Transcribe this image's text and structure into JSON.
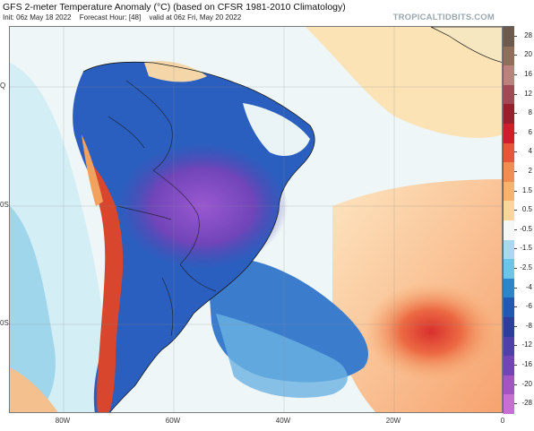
{
  "header": {
    "title": "GFS 2-meter Temperature Anomaly (°C) (based on CFSR 1981-2010 Climatology)",
    "init": "Init: 06z May 18 2022",
    "forecast_hour": "Forecast Hour: [48]",
    "valid": "valid at 06z Fri, May 20 2022",
    "brand": "TROPICALTIDBITS.COM"
  },
  "map": {
    "region": "South America",
    "lat_labels": [
      "Q",
      "0S",
      "0S"
    ],
    "lon_labels": [
      "80W",
      "60W",
      "40W",
      "20W",
      "0"
    ]
  },
  "colorbar": {
    "labels": [
      "28",
      "20",
      "16",
      "12",
      "8",
      "6",
      "4",
      "2",
      "1.5",
      "0.5",
      "-0.5",
      "-1.5",
      "-2.5",
      "-4",
      "-6",
      "-8",
      "-12",
      "-16",
      "-20",
      "-28"
    ],
    "colors": [
      "#6b5a4d",
      "#8f6f59",
      "#b9827a",
      "#a14a55",
      "#9a1f2d",
      "#cf1f2a",
      "#e8563a",
      "#f18c52",
      "#f7b36d",
      "#fbd59a",
      "#f5f7f7",
      "#a9d9ee",
      "#6cc5e7",
      "#2a86c8",
      "#2058b4",
      "#2c3d9c",
      "#4f3fa9",
      "#7244b5",
      "#a255c1",
      "#c66fd1"
    ]
  }
}
